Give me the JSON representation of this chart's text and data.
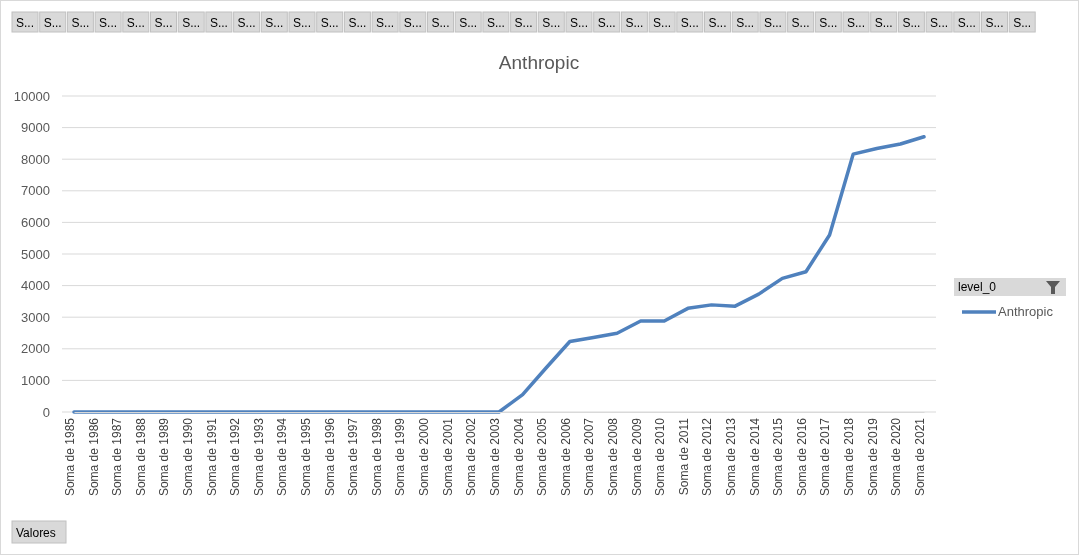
{
  "chart_data": {
    "type": "line",
    "title": "Anthropic",
    "legend_title": "level_0",
    "legend": "right",
    "grid": "y",
    "categories": [
      "Soma de 1985",
      "Soma de 1986",
      "Soma de 1987",
      "Soma de 1988",
      "Soma de 1989",
      "Soma de 1990",
      "Soma de 1991",
      "Soma de 1992",
      "Soma de 1993",
      "Soma de 1994",
      "Soma de 1995",
      "Soma de 1996",
      "Soma de 1997",
      "Soma de 1998",
      "Soma de 1999",
      "Soma de 2000",
      "Soma de 2001",
      "Soma de 2002",
      "Soma de 2003",
      "Soma de 2004",
      "Soma de 2005",
      "Soma de 2006",
      "Soma de 2007",
      "Soma de 2008",
      "Soma de 2009",
      "Soma de 2010",
      "Soma de 2011",
      "Soma de 2012",
      "Soma de 2013",
      "Soma de 2014",
      "Soma de 2015",
      "Soma de 2016",
      "Soma de 2017",
      "Soma de 2018",
      "Soma de 2019",
      "Soma de 2020",
      "Soma de 2021"
    ],
    "series": [
      {
        "name": "Anthropic",
        "color": "#4f81bd",
        "values": [
          0,
          0,
          0,
          0,
          0,
          0,
          0,
          0,
          0,
          0,
          0,
          0,
          0,
          0,
          0,
          0,
          0,
          0,
          0,
          550,
          1400,
          2230,
          2360,
          2490,
          2880,
          2880,
          3280,
          3390,
          3350,
          3730,
          4230,
          4440,
          5600,
          8160,
          8340,
          8480,
          8710
        ]
      }
    ],
    "ylim": [
      0,
      10000
    ],
    "yticks": [
      0,
      1000,
      2000,
      3000,
      4000,
      5000,
      6000,
      7000,
      8000,
      9000,
      10000
    ],
    "marker": "none",
    "line_style": "solid",
    "annotations": [
      "S...",
      "S...",
      "S...",
      "S...",
      "S...",
      "S...",
      "S...",
      "S...",
      "S...",
      "S...",
      "S...",
      "S...",
      "S...",
      "S...",
      "S...",
      "S...",
      "S...",
      "S...",
      "S...",
      "S...",
      "S...",
      "S...",
      "S...",
      "S...",
      "S...",
      "S...",
      "S...",
      "S...",
      "S...",
      "S...",
      "S...",
      "S...",
      "S...",
      "S...",
      "S...",
      "S...",
      "S...",
      "Valores"
    ]
  }
}
